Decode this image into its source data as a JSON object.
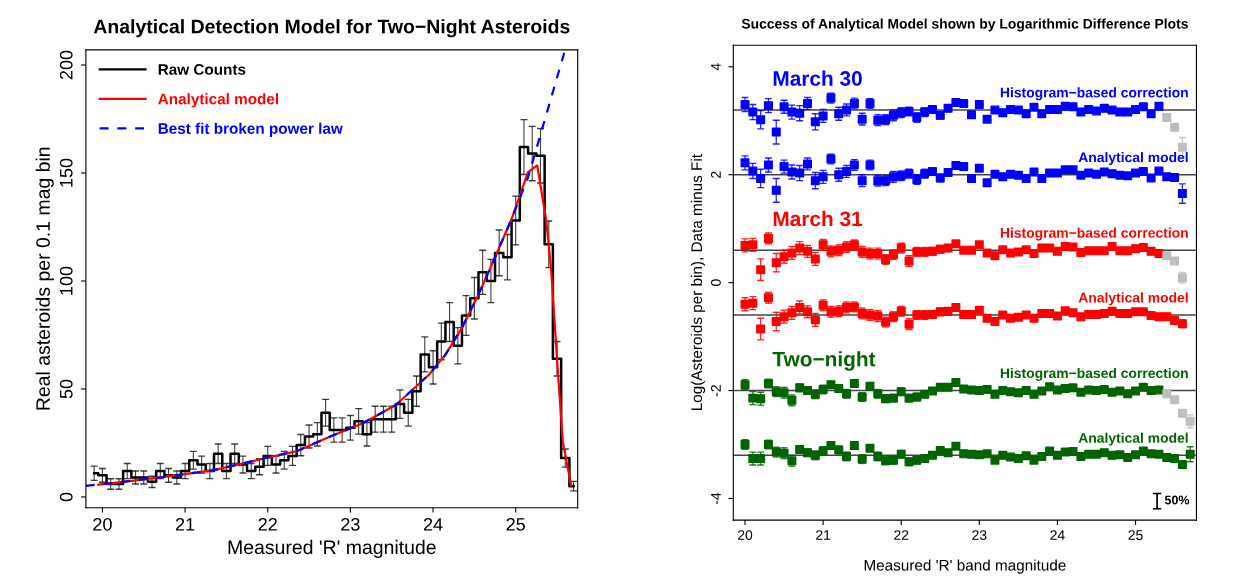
{
  "chart_data": [
    {
      "type": "histogram",
      "title": "Analytical Detection Model for Two−Night Asteroids",
      "xlabel": "Measured 'R' magnitude",
      "ylabel": "Real asteroids per 0.1 mag bin",
      "xlim": [
        19.8,
        25.75
      ],
      "ylim": [
        -5,
        207
      ],
      "xticks": [
        20,
        21,
        22,
        23,
        24,
        25
      ],
      "yticks": [
        0,
        50,
        100,
        150,
        200
      ],
      "legend": "top left",
      "grid": false,
      "series": [
        {
          "name": "Raw Counts",
          "type": "step",
          "color": "#000000",
          "x": [
            19.9,
            20,
            20.1,
            20.2,
            20.3,
            20.4,
            20.5,
            20.6,
            20.7,
            20.8,
            20.9,
            21,
            21.1,
            21.2,
            21.3,
            21.4,
            21.5,
            21.6,
            21.7,
            21.8,
            21.9,
            22,
            22.1,
            22.2,
            22.3,
            22.4,
            22.5,
            22.6,
            22.7,
            22.8,
            22.9,
            23,
            23.1,
            23.2,
            23.3,
            23.4,
            23.5,
            23.6,
            23.7,
            23.8,
            23.9,
            24,
            24.1,
            24.2,
            24.3,
            24.4,
            24.5,
            24.6,
            24.7,
            24.8,
            24.9,
            25,
            25.1,
            25.2,
            25.3,
            25.4,
            25.5,
            25.6,
            25.7
          ],
          "values": [
            11,
            10,
            6,
            6,
            12,
            9,
            9,
            7,
            12,
            10,
            9,
            12,
            17,
            15,
            12,
            20,
            12,
            20,
            15,
            12,
            14,
            19,
            15,
            17,
            19,
            24,
            28,
            29,
            39,
            31,
            31,
            32,
            35,
            29,
            36,
            36,
            36,
            43,
            39,
            49,
            66,
            60,
            72,
            81,
            70,
            84,
            92,
            104,
            100,
            113,
            111,
            128,
            162,
            159,
            158,
            117,
            64,
            18,
            5
          ],
          "errors": [
            3.3,
            3.2,
            2.4,
            2.4,
            3.5,
            3,
            3,
            2.6,
            3.5,
            3.2,
            3,
            3.5,
            4.1,
            3.9,
            3.5,
            4.5,
            3.5,
            4.5,
            3.9,
            3.5,
            3.7,
            4.4,
            3.9,
            4.1,
            4.4,
            4.9,
            5.3,
            5.4,
            6.2,
            5.6,
            5.6,
            5.7,
            5.9,
            5.4,
            6,
            6,
            6,
            6.6,
            6.2,
            7,
            8.1,
            7.7,
            8.5,
            9,
            8.4,
            9.2,
            9.6,
            10.2,
            10,
            10.6,
            10.5,
            11.3,
            12.7,
            12.6,
            12.6,
            10.8,
            8,
            4.2,
            2.2
          ]
        },
        {
          "name": "Analytical model",
          "type": "line",
          "color": "#ff0000",
          "line_style": "solid",
          "x": [
            19.95,
            20.25,
            20.75,
            21.35,
            21.95,
            22.35,
            22.75,
            23.15,
            23.55,
            23.95,
            24.15,
            24.35,
            24.55,
            24.75,
            24.95,
            25.15,
            25.26,
            25.37,
            25.43,
            25.51,
            25.57,
            25.67
          ],
          "values": [
            5.7,
            7,
            9.3,
            12.4,
            17.8,
            21.2,
            27.9,
            34.1,
            42.6,
            56.6,
            65.9,
            78.3,
            93.8,
            110.9,
            128.7,
            150.4,
            153.5,
            127.9,
            104.7,
            58.1,
            25.6,
            5.4
          ]
        },
        {
          "name": "Best fit broken power law",
          "type": "line",
          "color": "#0000ff",
          "line_style": "dashed",
          "x": [
            19.8,
            20.25,
            20.75,
            21.35,
            21.95,
            22.35,
            22.75,
            23.15,
            23.55,
            23.95,
            24.15,
            24.35,
            24.55,
            24.75,
            24.95,
            25.15,
            25.35,
            25.59
          ],
          "values": [
            5.1,
            7,
            9.3,
            12.4,
            17.8,
            21.2,
            27.9,
            34.1,
            42.6,
            56.6,
            65.9,
            78.3,
            93.8,
            110.9,
            128.7,
            148,
            174.4,
            206
          ]
        }
      ]
    },
    {
      "type": "scatter",
      "title": "Success of Analytical Model shown by Logarithmic Difference Plots",
      "xlabel": "Measured 'R' band magnitude",
      "ylabel": "Log(Asteroids per bin), Data minus Fit",
      "xlim": [
        19.85,
        25.78
      ],
      "ylim": [
        -4.4,
        4.4
      ],
      "xticks": [
        20,
        21,
        22,
        23,
        24,
        25
      ],
      "yticks": [
        -4,
        -2,
        0,
        2,
        4
      ],
      "marker": "square",
      "grid": false,
      "legend": false,
      "annotations": [
        "March 30",
        "March 31",
        "Two−night",
        "50%"
      ],
      "ref_lines": [
        {
          "axis": "y",
          "value": 3.2
        },
        {
          "axis": "y",
          "value": 2
        },
        {
          "axis": "y",
          "value": 0.6
        },
        {
          "axis": "y",
          "value": -0.6
        },
        {
          "axis": "y",
          "value": -2
        },
        {
          "axis": "y",
          "value": -3.2
        }
      ],
      "series": [
        {
          "name": "Histogram−based correction",
          "color": "#0000ff",
          "x": [
            20,
            20.1,
            20.2,
            20.3,
            20.4,
            20.5,
            20.6,
            20.7,
            20.8,
            20.9,
            21,
            21.1,
            21.2,
            21.3,
            21.4,
            21.5,
            21.6,
            21.7,
            21.8,
            21.9,
            22,
            22.1,
            22.2,
            22.3,
            22.4,
            22.5,
            22.6,
            22.7,
            22.8,
            22.9,
            23,
            23.1,
            23.2,
            23.3,
            23.4,
            23.5,
            23.6,
            23.7,
            23.8,
            23.9,
            24,
            24.1,
            24.2,
            24.3,
            24.4,
            24.5,
            24.6,
            24.7,
            24.8,
            24.9,
            25,
            25.1,
            25.2,
            25.3
          ],
          "values": [
            3.3,
            3.16,
            3.02,
            3.28,
            2.79,
            3.26,
            3.16,
            3.14,
            3.32,
            2.98,
            3.09,
            3.42,
            3.13,
            3.2,
            3.32,
            3.03,
            3.32,
            3.01,
            3.02,
            3.1,
            3.15,
            3.17,
            3.06,
            3.16,
            3.21,
            3.1,
            3.23,
            3.34,
            3.32,
            3.11,
            3.3,
            3.03,
            3.2,
            3.15,
            3.21,
            3.2,
            3.13,
            3.25,
            3.13,
            3.21,
            3.21,
            3.27,
            3.26,
            3.16,
            3.21,
            3.18,
            3.23,
            3.2,
            3.16,
            3.16,
            3.21,
            3.26,
            3.13,
            3.27
          ],
          "errors": [
            0.13,
            0.14,
            0.17,
            0.13,
            0.22,
            0.12,
            0.13,
            0.14,
            0.11,
            0.15,
            0.12,
            0.09,
            0.12,
            0.11,
            0.1,
            0.11,
            0.09,
            0.1,
            0.09,
            0.1,
            0.09,
            0.08,
            0.09,
            0.08,
            0.07,
            0.07,
            null,
            null,
            null,
            null,
            null,
            null,
            null,
            null,
            null,
            null,
            null,
            null,
            null,
            null,
            null,
            null,
            null,
            null,
            null,
            null,
            null,
            null,
            null,
            null,
            null,
            null,
            null,
            null
          ]
        },
        {
          "name": "Analytical model",
          "color": "#0000ff",
          "x": [
            20,
            20.1,
            20.2,
            20.3,
            20.4,
            20.5,
            20.6,
            20.7,
            20.8,
            20.9,
            21,
            21.1,
            21.2,
            21.3,
            21.4,
            21.5,
            21.6,
            21.7,
            21.8,
            21.9,
            22,
            22.1,
            22.2,
            22.3,
            22.4,
            22.5,
            22.6,
            22.7,
            22.8,
            22.9,
            23,
            23.1,
            23.2,
            23.3,
            23.4,
            23.5,
            23.6,
            23.7,
            23.8,
            23.9,
            24,
            24.1,
            24.2,
            24.3,
            24.4,
            24.5,
            24.6,
            24.7,
            24.8,
            24.9,
            25,
            25.1,
            25.2,
            25.3,
            25.4,
            25.5,
            25.6
          ],
          "values": [
            2.22,
            2.07,
            1.93,
            2.18,
            1.71,
            2.15,
            2.05,
            2.03,
            2.2,
            1.89,
            1.96,
            2.29,
            2,
            2.06,
            2.18,
            1.89,
            2.18,
            1.89,
            1.89,
            1.96,
            1.98,
            2.02,
            1.91,
            2.02,
            2.06,
            1.94,
            2.04,
            2.17,
            2.15,
            1.93,
            2.12,
            1.85,
            2.01,
            1.96,
            2.01,
            1.99,
            1.93,
            2.05,
            1.93,
            2.03,
            2.03,
            2.09,
            2.09,
            1.99,
            2.03,
            2.01,
            2.05,
            2.02,
            1.99,
            1.98,
            2.03,
            2.06,
            1.94,
            2.07,
            1.96,
            1.95,
            1.65
          ],
          "errors": [
            0.13,
            0.14,
            0.17,
            0.13,
            0.22,
            0.12,
            0.13,
            0.14,
            0.11,
            0.15,
            0.12,
            0.09,
            0.12,
            0.11,
            0.1,
            0.11,
            0.09,
            0.1,
            0.09,
            0.1,
            0.09,
            0.08,
            0.09,
            0.08,
            0.07,
            0.07,
            null,
            null,
            null,
            null,
            null,
            null,
            null,
            null,
            null,
            null,
            null,
            null,
            null,
            null,
            null,
            null,
            null,
            null,
            null,
            null,
            null,
            null,
            null,
            null,
            null,
            null,
            null,
            null,
            null,
            0.05,
            0.18
          ]
        },
        {
          "name": "Histogram−based correction",
          "color": "#ff0000",
          "x": [
            20,
            20.1,
            20.2,
            20.3,
            20.4,
            20.5,
            20.6,
            20.7,
            20.8,
            20.9,
            21,
            21.1,
            21.2,
            21.3,
            21.4,
            21.5,
            21.6,
            21.7,
            21.8,
            21.9,
            22,
            22.1,
            22.2,
            22.3,
            22.4,
            22.5,
            22.6,
            22.7,
            22.8,
            22.9,
            23,
            23.1,
            23.2,
            23.3,
            23.4,
            23.5,
            23.6,
            23.7,
            23.8,
            23.9,
            24,
            24.1,
            24.2,
            24.3,
            24.4,
            24.5,
            24.6,
            24.7,
            24.8,
            24.9,
            25,
            25.1,
            25.2,
            25.3
          ],
          "values": [
            0.69,
            0.7,
            0.24,
            0.82,
            0.37,
            0.48,
            0.55,
            0.64,
            0.58,
            0.44,
            0.7,
            0.58,
            0.6,
            0.66,
            0.7,
            0.57,
            0.54,
            0.54,
            0.43,
            0.52,
            0.64,
            0.4,
            0.57,
            0.57,
            0.58,
            0.62,
            0.64,
            0.72,
            0.6,
            0.6,
            0.7,
            0.55,
            0.5,
            0.61,
            0.55,
            0.57,
            0.61,
            0.54,
            0.64,
            0.64,
            0.58,
            0.67,
            0.66,
            0.56,
            0.59,
            0.59,
            0.59,
            0.67,
            0.59,
            0.59,
            0.63,
            0.65,
            0.58,
            0.54
          ],
          "errors": [
            0.12,
            0.12,
            0.2,
            0.1,
            0.17,
            0.12,
            0.12,
            0.12,
            0.11,
            0.12,
            0.1,
            0.1,
            0.1,
            0.1,
            0.09,
            0.1,
            0.1,
            0.1,
            0.09,
            0.09,
            0.09,
            0.1,
            0.08,
            0.08,
            0.07,
            0.07,
            null,
            null,
            null,
            null,
            null,
            null,
            null,
            null,
            null,
            null,
            null,
            null,
            null,
            null,
            null,
            null,
            null,
            null,
            null,
            null,
            null,
            null,
            null,
            null,
            null,
            null,
            null,
            null
          ]
        },
        {
          "name": "Analytical model",
          "color": "#ff0000",
          "x": [
            20,
            20.1,
            20.2,
            20.3,
            20.4,
            20.5,
            20.6,
            20.7,
            20.8,
            20.9,
            21,
            21.1,
            21.2,
            21.3,
            21.4,
            21.5,
            21.6,
            21.7,
            21.8,
            21.9,
            22,
            22.1,
            22.2,
            22.3,
            22.4,
            22.5,
            22.6,
            22.7,
            22.8,
            22.9,
            23,
            23.1,
            23.2,
            23.3,
            23.4,
            23.5,
            23.6,
            23.7,
            23.8,
            23.9,
            24,
            24.1,
            24.2,
            24.3,
            24.4,
            24.5,
            24.6,
            24.7,
            24.8,
            24.9,
            25,
            25.1,
            25.2,
            25.3,
            25.4,
            25.5,
            25.6
          ],
          "values": [
            -0.4,
            -0.38,
            -0.86,
            -0.28,
            -0.72,
            -0.63,
            -0.56,
            -0.46,
            -0.54,
            -0.69,
            -0.42,
            -0.54,
            -0.53,
            -0.46,
            -0.45,
            -0.57,
            -0.6,
            -0.62,
            -0.73,
            -0.63,
            -0.53,
            -0.77,
            -0.6,
            -0.6,
            -0.59,
            -0.54,
            -0.53,
            -0.46,
            -0.59,
            -0.59,
            -0.51,
            -0.66,
            -0.72,
            -0.6,
            -0.66,
            -0.64,
            -0.6,
            -0.66,
            -0.57,
            -0.57,
            -0.62,
            -0.52,
            -0.56,
            -0.63,
            -0.59,
            -0.59,
            -0.57,
            -0.53,
            -0.57,
            -0.57,
            -0.54,
            -0.54,
            -0.61,
            -0.63,
            -0.63,
            -0.7,
            -0.76
          ],
          "errors": [
            0.12,
            0.12,
            0.2,
            0.1,
            0.17,
            0.12,
            0.12,
            0.12,
            0.11,
            0.12,
            0.1,
            0.1,
            0.1,
            0.1,
            0.09,
            0.1,
            0.1,
            0.1,
            0.09,
            0.09,
            0.09,
            0.1,
            0.08,
            0.08,
            0.07,
            0.07,
            null,
            null,
            null,
            null,
            null,
            null,
            null,
            null,
            null,
            null,
            null,
            null,
            null,
            null,
            null,
            null,
            null,
            null,
            null,
            null,
            null,
            null,
            null,
            null,
            null,
            null,
            null,
            null,
            null,
            0.05,
            0.07
          ]
        },
        {
          "name": "Histogram−based correction",
          "color": "#006400",
          "x": [
            20,
            20.1,
            20.2,
            20.3,
            20.4,
            20.5,
            20.6,
            20.7,
            20.8,
            20.9,
            21,
            21.1,
            21.2,
            21.3,
            21.4,
            21.5,
            21.6,
            21.7,
            21.8,
            21.9,
            22,
            22.1,
            22.2,
            22.3,
            22.4,
            22.5,
            22.6,
            22.7,
            22.8,
            22.9,
            23,
            23.1,
            23.2,
            23.3,
            23.4,
            23.5,
            23.6,
            23.7,
            23.8,
            23.9,
            24,
            24.1,
            24.2,
            24.3,
            24.4,
            24.5,
            24.6,
            24.7,
            24.8,
            24.9,
            25,
            25.1,
            25.2,
            25.3
          ],
          "values": [
            -1.89,
            -2.14,
            -2.15,
            -1.87,
            -2.02,
            -2.04,
            -2.18,
            -1.95,
            -2,
            -2.07,
            -1.98,
            -1.89,
            -1.96,
            -2.06,
            -1.87,
            -2.12,
            -1.92,
            -2.06,
            -2.15,
            -2.14,
            -2.02,
            -2.14,
            -2.12,
            -2.07,
            -2.01,
            -1.94,
            -1.94,
            -1.85,
            -1.97,
            -1.99,
            -2,
            -1.98,
            -2.07,
            -2,
            -2.02,
            -2.04,
            -2,
            -2.07,
            -2.01,
            -1.93,
            -1.99,
            -1.96,
            -1.95,
            -2.03,
            -1.99,
            -2,
            -1.98,
            -2.03,
            -2.01,
            -2.06,
            -2.01,
            -1.94,
            -2,
            -1.99
          ],
          "errors": [
            0.09,
            0.12,
            0.12,
            0.08,
            0.09,
            0.1,
            0.1,
            0.07,
            0.07,
            0.08,
            0.08,
            0.06,
            0.07,
            0.08,
            0.06,
            0.08,
            0.06,
            0.08,
            0.07,
            0.07,
            0.07,
            0.07,
            0.07,
            0.06,
            0.05,
            0.05,
            null,
            null,
            null,
            null,
            null,
            null,
            null,
            null,
            null,
            null,
            null,
            null,
            null,
            null,
            null,
            null,
            null,
            null,
            null,
            null,
            null,
            null,
            null,
            null,
            null,
            null,
            null,
            null
          ]
        },
        {
          "name": "Analytical model",
          "color": "#006400",
          "x": [
            20,
            20.1,
            20.2,
            20.3,
            20.4,
            20.5,
            20.6,
            20.7,
            20.8,
            20.9,
            21,
            21.1,
            21.2,
            21.3,
            21.4,
            21.5,
            21.6,
            21.7,
            21.8,
            21.9,
            22,
            22.1,
            22.2,
            22.3,
            22.4,
            22.5,
            22.6,
            22.7,
            22.8,
            22.9,
            23,
            23.1,
            23.2,
            23.3,
            23.4,
            23.5,
            23.6,
            23.7,
            23.8,
            23.9,
            24,
            24.1,
            24.2,
            24.3,
            24.4,
            24.5,
            24.6,
            24.7,
            24.8,
            24.9,
            25,
            25.1,
            25.2,
            25.3,
            25.4,
            25.5,
            25.6,
            25.7
          ],
          "values": [
            -3,
            -3.26,
            -3.26,
            -3,
            -3.14,
            -3.16,
            -3.3,
            -3.09,
            -3.15,
            -3.2,
            -3.12,
            -3.02,
            -3.1,
            -3.22,
            -3.02,
            -3.27,
            -3.07,
            -3.22,
            -3.3,
            -3.29,
            -3.18,
            -3.32,
            -3.29,
            -3.26,
            -3.2,
            -3.11,
            -3.15,
            -3.03,
            -3.17,
            -3.18,
            -3.19,
            -3.17,
            -3.29,
            -3.2,
            -3.23,
            -3.26,
            -3.21,
            -3.29,
            -3.22,
            -3.12,
            -3.2,
            -3.14,
            -3.13,
            -3.22,
            -3.18,
            -3.18,
            -3.15,
            -3.2,
            -3.19,
            -3.24,
            -3.19,
            -3.12,
            -3.17,
            -3.18,
            -3.24,
            -3.26,
            -3.37,
            -3.18
          ],
          "errors": [
            0.09,
            0.12,
            0.12,
            0.08,
            0.09,
            0.1,
            0.1,
            0.07,
            0.07,
            0.08,
            0.08,
            0.06,
            0.07,
            0.08,
            0.06,
            0.08,
            0.06,
            0.08,
            0.07,
            0.07,
            0.07,
            0.07,
            0.07,
            0.06,
            0.05,
            0.05,
            null,
            null,
            null,
            null,
            null,
            null,
            null,
            null,
            null,
            null,
            null,
            null,
            null,
            null,
            null,
            null,
            null,
            null,
            null,
            null,
            null,
            null,
            null,
            null,
            null,
            null,
            null,
            null,
            null,
            null,
            0.06,
            0.14
          ]
        },
        {
          "color": "#bebebe",
          "x": [
            25.4,
            25.5,
            25.6
          ],
          "values": [
            3.06,
            2.88,
            2.51
          ],
          "errors": [
            null,
            0.05,
            0.18
          ]
        },
        {
          "color": "#bebebe",
          "x": [
            25.4,
            25.5,
            25.6
          ],
          "values": [
            0.5,
            0.4,
            0.09
          ],
          "errors": [
            null,
            0.05,
            0.1
          ]
        },
        {
          "color": "#bebebe",
          "x": [
            25.4,
            25.5,
            25.6,
            25.7
          ],
          "values": [
            -2.06,
            -2.17,
            -2.42,
            -2.57
          ],
          "errors": [
            null,
            null,
            0.06,
            0.12
          ]
        }
      ]
    }
  ]
}
